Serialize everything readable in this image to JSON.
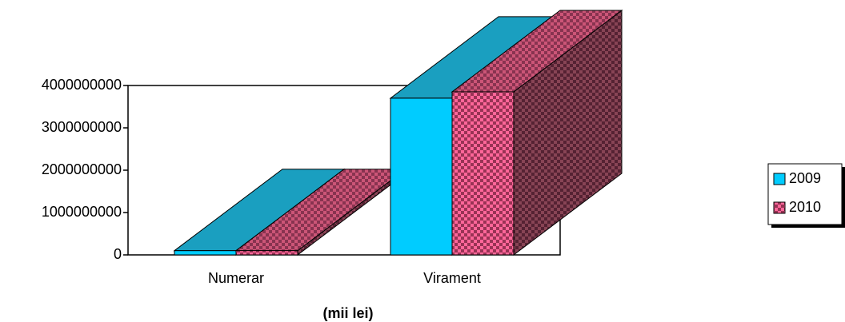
{
  "chart_data": {
    "type": "bar3d",
    "categories": [
      "Numerar",
      "Virament"
    ],
    "series": [
      {
        "name": "2009",
        "color": "#00ccff",
        "values": [
          100000000,
          3700000000
        ]
      },
      {
        "name": "2010",
        "color": "#ff6699",
        "values": [
          100000000,
          3850000000
        ]
      }
    ],
    "ylim": [
      0,
      4000000000
    ],
    "yticks": [
      0,
      1000000000,
      2000000000,
      3000000000,
      4000000000
    ],
    "x_label": "(mii lei)",
    "legend": "right"
  }
}
